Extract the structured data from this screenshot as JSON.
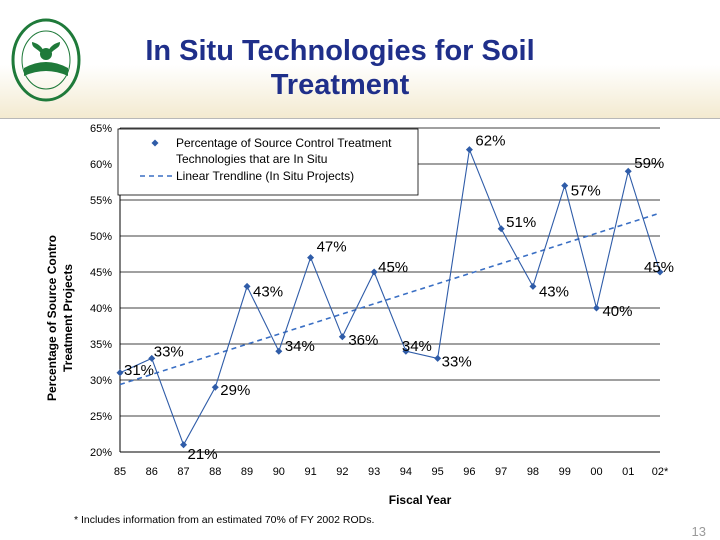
{
  "slide": {
    "title": "In Situ Technologies for Soil Treatment",
    "footnote": "* Includes information from an estimated 70% of FY 2002 RODs.",
    "page_number": "13",
    "logo": {
      "text": "UNITED STATES ENVIRONMENTAL PROTECTION AGENCY",
      "color": "#1f7a3a"
    }
  },
  "colors": {
    "title": "#1f2f8a",
    "series": "#2f5ca8",
    "trend": "#3a6fc4",
    "grid": "#000000"
  },
  "chart_data": {
    "type": "line",
    "title": "",
    "xlabel": "Fiscal Year",
    "ylabel": "Percentage of Source Control Treatment Projects",
    "ylabel_lines": [
      "Percentage of Source Contro",
      "Treatment Projects"
    ],
    "categories": [
      "85",
      "86",
      "87",
      "88",
      "89",
      "90",
      "91",
      "92",
      "93",
      "94",
      "95",
      "96",
      "97",
      "98",
      "99",
      "00",
      "01",
      "02*"
    ],
    "series": [
      {
        "name": "Percentage of Source Control Treatment Technologies that are In Situ",
        "values": [
          31,
          33,
          21,
          29,
          43,
          34,
          47,
          36,
          45,
          34,
          33,
          62,
          51,
          43,
          57,
          40,
          59,
          45
        ],
        "point_labels": [
          "31%",
          "33%",
          "21%",
          "29%",
          "43%",
          "34%",
          "47%",
          "36%",
          "45%",
          "34%",
          "33%",
          "62%",
          "51%",
          "43%",
          "57%",
          "40%",
          "59%",
          "45%"
        ]
      },
      {
        "name": "Linear Trendline (In Situ Projects)",
        "style": "dashed",
        "trendline_of": 0
      }
    ],
    "legend": {
      "position": "top-left",
      "entries": [
        "Percentage of Source Control Treatment Technologies that are In Situ",
        "Linear Trendline (In Situ Projects)"
      ]
    },
    "ylim": [
      20,
      65
    ],
    "y_ticks": [
      20,
      25,
      30,
      35,
      40,
      45,
      50,
      55,
      60,
      65
    ],
    "y_tick_labels": [
      "20%",
      "25%",
      "30%",
      "35%",
      "40%",
      "45%",
      "50%",
      "55%",
      "60%",
      "65%"
    ],
    "grid": true
  }
}
